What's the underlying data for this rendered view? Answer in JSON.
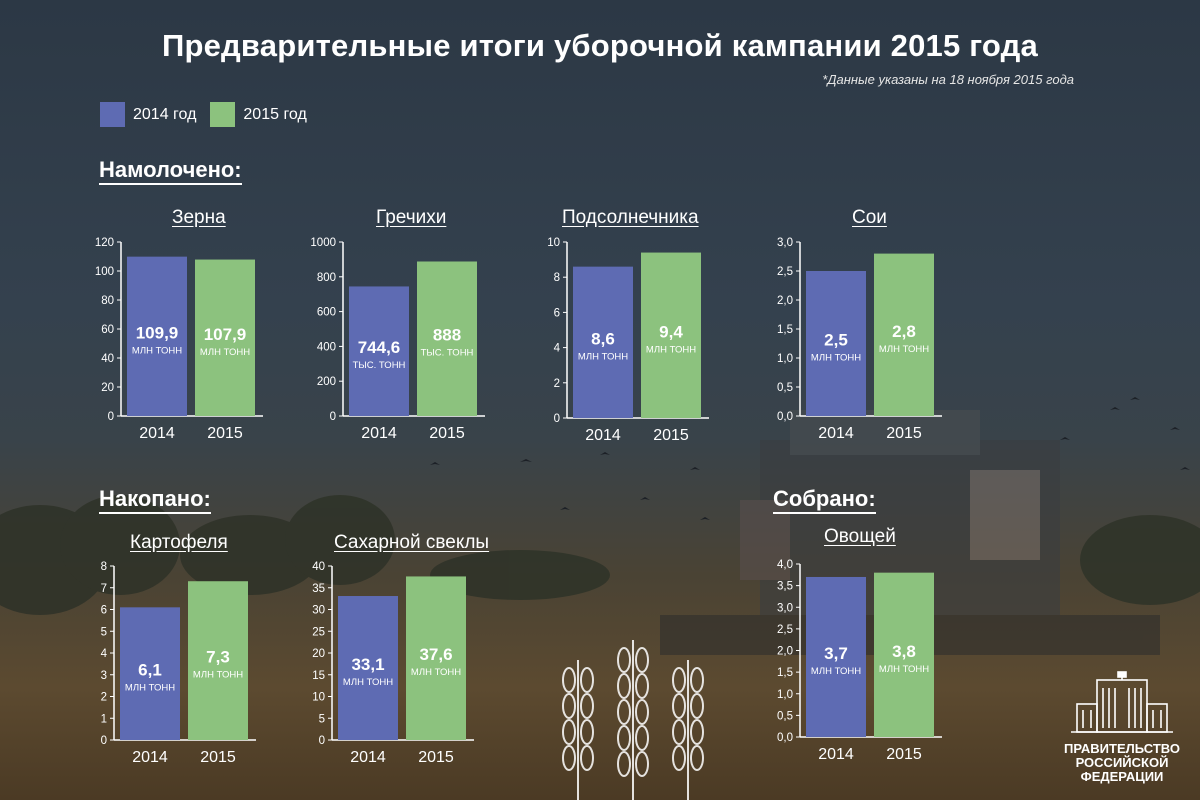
{
  "title": "Предварительные итоги уборочной кампании 2015 года",
  "note": "*Данные указаны на 18 ноября 2015 года",
  "legend": [
    {
      "label": "2014 год",
      "color": "#5e6bb3"
    },
    {
      "label": "2015 год",
      "color": "#8cc27e"
    }
  ],
  "sections": {
    "threshed": "Намолочено:",
    "dug": "Накопано:",
    "collected": "Собрано:"
  },
  "colors": {
    "y2014": "#5e6bb3",
    "y2015": "#8cc27e",
    "axis": "#ffffff"
  },
  "logo": {
    "line1": "ПРАВИТЕЛЬСТВО",
    "line2": "РОССИЙСКОЙ",
    "line3": "ФЕДЕРАЦИИ"
  },
  "chart_data": [
    {
      "id": "grain",
      "type": "bar",
      "title": "Зерна",
      "categories": [
        "2014",
        "2015"
      ],
      "values": [
        109.9,
        107.9
      ],
      "labels": [
        "109,9",
        "107,9"
      ],
      "units": [
        "МЛН ТОНН",
        "МЛН ТОНН"
      ],
      "ylim": [
        0,
        120
      ],
      "yticks": [
        "0",
        "20",
        "40",
        "60",
        "80",
        "100",
        "120"
      ]
    },
    {
      "id": "buckwheat",
      "type": "bar",
      "title": "Гречихи",
      "categories": [
        "2014",
        "2015"
      ],
      "values": [
        744.6,
        888
      ],
      "labels": [
        "744,6",
        "888"
      ],
      "units": [
        "ТЫС. ТОНН",
        "ТЫС. ТОНН"
      ],
      "ylim": [
        0,
        1000
      ],
      "yticks": [
        "0",
        "200",
        "400",
        "600",
        "800",
        "1000"
      ]
    },
    {
      "id": "sunflower",
      "type": "bar",
      "title": "Подсолнечника",
      "categories": [
        "2014",
        "2015"
      ],
      "values": [
        8.6,
        9.4
      ],
      "labels": [
        "8,6",
        "9,4"
      ],
      "units": [
        "МЛН ТОНН",
        "МЛН ТОНН"
      ],
      "ylim": [
        0,
        10
      ],
      "yticks": [
        "0",
        "2",
        "4",
        "6",
        "8",
        "10"
      ]
    },
    {
      "id": "soy",
      "type": "bar",
      "title": "Сои",
      "categories": [
        "2014",
        "2015"
      ],
      "values": [
        2.5,
        2.8
      ],
      "labels": [
        "2,5",
        "2,8"
      ],
      "units": [
        "МЛН ТОНН",
        "МЛН ТОНН"
      ],
      "ylim": [
        0,
        3
      ],
      "yticks": [
        "0,0",
        "0,5",
        "1,0",
        "1,5",
        "2,0",
        "2,5",
        "3,0"
      ]
    },
    {
      "id": "potato",
      "type": "bar",
      "title": "Картофеля",
      "categories": [
        "2014",
        "2015"
      ],
      "values": [
        6.1,
        7.3
      ],
      "labels": [
        "6,1",
        "7,3"
      ],
      "units": [
        "МЛН ТОНН",
        "МЛН ТОНН"
      ],
      "ylim": [
        0,
        8
      ],
      "yticks": [
        "0",
        "1",
        "2",
        "3",
        "4",
        "5",
        "6",
        "7",
        "8"
      ]
    },
    {
      "id": "sugarbeet",
      "type": "bar",
      "title": "Сахарной свеклы",
      "categories": [
        "2014",
        "2015"
      ],
      "values": [
        33.1,
        37.6
      ],
      "labels": [
        "33,1",
        "37,6"
      ],
      "units": [
        "МЛН ТОНН",
        "МЛН ТОНН"
      ],
      "ylim": [
        0,
        40
      ],
      "yticks": [
        "0",
        "5",
        "10",
        "15",
        "20",
        "25",
        "30",
        "35",
        "40"
      ]
    },
    {
      "id": "vegetables",
      "type": "bar",
      "title": "Овощей",
      "categories": [
        "2014",
        "2015"
      ],
      "values": [
        3.7,
        3.8
      ],
      "labels": [
        "3,7",
        "3,8"
      ],
      "units": [
        "МЛН ТОНН",
        "МЛН ТОНН"
      ],
      "ylim": [
        0,
        4
      ],
      "yticks": [
        "0,0",
        "0,5",
        "1,0",
        "1,5",
        "2,0",
        "2,5",
        "3,0",
        "3,5",
        "4,0"
      ]
    }
  ]
}
